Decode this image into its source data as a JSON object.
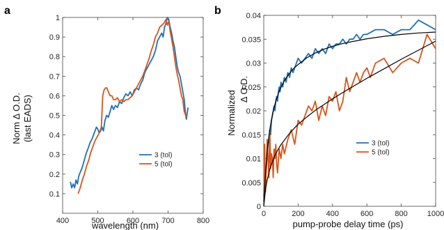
{
  "chart_data": [
    {
      "type": "line",
      "panel_label": "a",
      "xlabel": "wavelength (nm)",
      "ylabel_line1": "Norm  Δ O.D.",
      "ylabel_line2": "(last EADS)",
      "xlim": [
        400,
        800
      ],
      "ylim": [
        0,
        1
      ],
      "xticks": [
        400,
        500,
        600,
        700,
        800
      ],
      "yticks": [
        0.1,
        0.2,
        0.3,
        0.4,
        0.5,
        0.6,
        0.7,
        0.8,
        0.9,
        1
      ],
      "ytick_labels": [
        "0.1",
        "0.2",
        "0.3",
        "0.4",
        "0.5",
        "0.6",
        "0.7",
        "0.8",
        "0.9",
        "1"
      ],
      "grid": false,
      "legend_position": "lower-right",
      "series": [
        {
          "name": "3 (tol)",
          "color": "#1f6fb4",
          "x": [
            422,
            426,
            430,
            434,
            438,
            442,
            446,
            450,
            455,
            460,
            466,
            472,
            478,
            484,
            490,
            496,
            500,
            504,
            508,
            512,
            516,
            520,
            525,
            530,
            535,
            540,
            545,
            550,
            556,
            562,
            568,
            574,
            580,
            586,
            592,
            598,
            604,
            610,
            616,
            622,
            628,
            634,
            640,
            646,
            652,
            658,
            664,
            670,
            676,
            682,
            686,
            690,
            694,
            698,
            702,
            706,
            710,
            714,
            718,
            722,
            726,
            730,
            734,
            738,
            742,
            746,
            750,
            752,
            755,
            757
          ],
          "y": [
            0.16,
            0.13,
            0.15,
            0.13,
            0.17,
            0.15,
            0.19,
            0.21,
            0.23,
            0.26,
            0.3,
            0.33,
            0.36,
            0.38,
            0.41,
            0.44,
            0.43,
            0.41,
            0.42,
            0.44,
            0.42,
            0.47,
            0.5,
            0.49,
            0.52,
            0.55,
            0.53,
            0.55,
            0.54,
            0.57,
            0.56,
            0.59,
            0.61,
            0.6,
            0.62,
            0.6,
            0.63,
            0.64,
            0.63,
            0.66,
            0.68,
            0.72,
            0.74,
            0.76,
            0.78,
            0.8,
            0.83,
            0.88,
            0.9,
            0.92,
            0.9,
            0.95,
            0.97,
            1.0,
            0.99,
            0.95,
            0.92,
            0.88,
            0.85,
            0.8,
            0.75,
            0.72,
            0.7,
            0.66,
            0.62,
            0.58,
            0.5,
            0.48,
            0.52,
            0.54
          ]
        },
        {
          "name": "5 (tol)",
          "color": "#d95319",
          "x": [
            444,
            450,
            456,
            462,
            468,
            474,
            480,
            486,
            492,
            498,
            504,
            510,
            514,
            518,
            522,
            526,
            530,
            535,
            540,
            545,
            550,
            556,
            562,
            568,
            574,
            580,
            586,
            592,
            598,
            604,
            610,
            616,
            622,
            628,
            634,
            640,
            646,
            652,
            658,
            664,
            670,
            676,
            682,
            688,
            694,
            698,
            702,
            706,
            710,
            714,
            718,
            722,
            726,
            730,
            734,
            738,
            742,
            746,
            750,
            753
          ],
          "y": [
            0.1,
            0.13,
            0.17,
            0.2,
            0.24,
            0.27,
            0.31,
            0.34,
            0.37,
            0.39,
            0.41,
            0.44,
            0.6,
            0.63,
            0.64,
            0.64,
            0.62,
            0.6,
            0.6,
            0.58,
            0.58,
            0.59,
            0.57,
            0.58,
            0.57,
            0.58,
            0.58,
            0.59,
            0.6,
            0.62,
            0.64,
            0.66,
            0.68,
            0.7,
            0.73,
            0.76,
            0.79,
            0.83,
            0.86,
            0.9,
            0.92,
            0.95,
            0.96,
            0.97,
            0.99,
            0.96,
            0.98,
            0.93,
            0.89,
            0.85,
            0.8,
            0.75,
            0.71,
            0.68,
            0.64,
            0.6,
            0.58,
            0.52,
            0.5,
            0.49
          ]
        }
      ]
    },
    {
      "type": "line",
      "panel_label": "b",
      "xlabel": "pump-probe delay time (ps)",
      "ylabel_line1": "Normalized",
      "ylabel_line2": "Δ O.D.",
      "xlim": [
        0,
        1000
      ],
      "ylim": [
        0,
        0.04
      ],
      "xticks": [
        0,
        200,
        400,
        600,
        800,
        1000
      ],
      "yticks": [
        0,
        0.005,
        0.01,
        0.015,
        0.02,
        0.025,
        0.03,
        0.035,
        0.04
      ],
      "ytick_labels": [
        "0",
        "0.005",
        "0.01",
        "0.015",
        "0.02",
        "0.025",
        "0.03",
        "0.035",
        "0.04"
      ],
      "grid": false,
      "legend_position": "lower-right",
      "series": [
        {
          "name": "3 (tol)",
          "color": "#1f6fb4",
          "x": [
            0,
            5,
            10,
            15,
            20,
            25,
            30,
            35,
            40,
            45,
            50,
            55,
            60,
            65,
            70,
            75,
            80,
            85,
            90,
            95,
            100,
            110,
            120,
            130,
            140,
            150,
            160,
            170,
            180,
            190,
            200,
            220,
            240,
            260,
            280,
            300,
            320,
            340,
            360,
            380,
            400,
            420,
            440,
            460,
            480,
            500,
            520,
            540,
            560,
            580,
            600,
            650,
            700,
            750,
            800,
            850,
            900,
            950,
            1000
          ],
          "y": [
            0.002,
            0.004,
            0.005,
            0.008,
            0.011,
            0.013,
            0.014,
            0.016,
            0.015,
            0.018,
            0.019,
            0.02,
            0.021,
            0.02,
            0.022,
            0.023,
            0.022,
            0.024,
            0.025,
            0.024,
            0.026,
            0.025,
            0.027,
            0.026,
            0.028,
            0.027,
            0.029,
            0.028,
            0.029,
            0.03,
            0.031,
            0.03,
            0.031,
            0.032,
            0.031,
            0.033,
            0.032,
            0.033,
            0.032,
            0.034,
            0.033,
            0.034,
            0.034,
            0.035,
            0.034,
            0.035,
            0.035,
            0.036,
            0.035,
            0.036,
            0.036,
            0.037,
            0.037,
            0.036,
            0.037,
            0.037,
            0.039,
            0.038,
            0.037
          ]
        },
        {
          "name": "5 (tol)",
          "color": "#d95319",
          "x": [
            0,
            5,
            10,
            15,
            20,
            25,
            30,
            35,
            40,
            45,
            50,
            55,
            60,
            65,
            70,
            75,
            80,
            90,
            100,
            110,
            120,
            140,
            160,
            180,
            200,
            220,
            240,
            260,
            280,
            300,
            320,
            340,
            360,
            380,
            400,
            420,
            440,
            460,
            480,
            500,
            520,
            540,
            560,
            580,
            600,
            620,
            650,
            700,
            750,
            800,
            850,
            900,
            950,
            1000
          ],
          "y": [
            0.001,
            0.013,
            0.003,
            0.008,
            0.014,
            0.01,
            0.006,
            0.016,
            0.008,
            0.011,
            0.01,
            0.006,
            0.012,
            0.01,
            0.013,
            0.009,
            0.007,
            0.012,
            0.01,
            0.013,
            0.011,
            0.014,
            0.016,
            0.013,
            0.018,
            0.017,
            0.019,
            0.021,
            0.02,
            0.022,
            0.018,
            0.021,
            0.019,
            0.023,
            0.022,
            0.024,
            0.02,
            0.022,
            0.027,
            0.024,
            0.026,
            0.028,
            0.026,
            0.028,
            0.029,
            0.027,
            0.03,
            0.031,
            0.028,
            0.03,
            0.031,
            0.03,
            0.036,
            0.033
          ]
        }
      ],
      "fits": [
        {
          "color": "#000000",
          "x": [
            0,
            10,
            20,
            30,
            40,
            50,
            60,
            70,
            80,
            90,
            100,
            120,
            140,
            160,
            180,
            200,
            250,
            300,
            350,
            400,
            450,
            500,
            600,
            700,
            800,
            900,
            1000
          ],
          "y": [
            0.0,
            0.0069,
            0.0115,
            0.0147,
            0.0172,
            0.0191,
            0.0207,
            0.022,
            0.0231,
            0.0241,
            0.0249,
            0.0263,
            0.0274,
            0.0283,
            0.0291,
            0.0297,
            0.0311,
            0.0321,
            0.0329,
            0.0335,
            0.034,
            0.0344,
            0.0351,
            0.0356,
            0.036,
            0.0363,
            0.0365
          ]
        },
        {
          "color": "#000000",
          "x": [
            0,
            10,
            20,
            30,
            40,
            50,
            60,
            80,
            100,
            150,
            200,
            250,
            300,
            350,
            400,
            450,
            500,
            600,
            700,
            800,
            900,
            1000
          ],
          "y": [
            0.0,
            0.0035,
            0.0055,
            0.007,
            0.0083,
            0.0093,
            0.0103,
            0.0117,
            0.0129,
            0.0153,
            0.0172,
            0.0187,
            0.0201,
            0.0213,
            0.0225,
            0.0236,
            0.0247,
            0.0268,
            0.0288,
            0.0308,
            0.0327,
            0.0346
          ]
        }
      ]
    }
  ]
}
